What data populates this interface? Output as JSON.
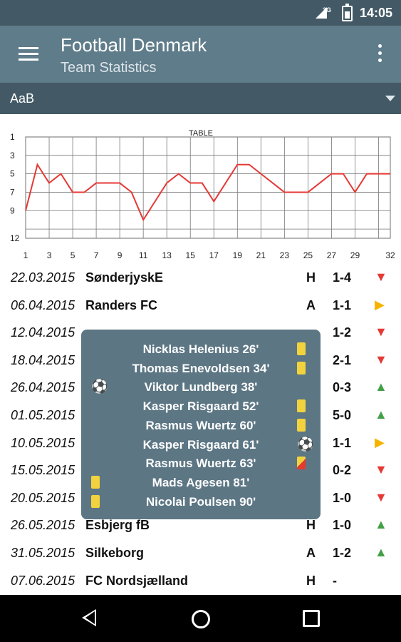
{
  "status_bar": {
    "time": "14:05",
    "network": "3G"
  },
  "app_bar": {
    "title": "Football Denmark",
    "subtitle": "Team Statistics"
  },
  "team_selector": {
    "value": "AaB"
  },
  "chart_data": {
    "type": "line",
    "title": "TABLE",
    "x_ticks": [
      1,
      3,
      5,
      7,
      9,
      11,
      13,
      15,
      17,
      19,
      21,
      23,
      25,
      27,
      29,
      32
    ],
    "y_ticks": [
      1,
      3,
      5,
      7,
      9,
      12
    ],
    "y_inverted": true,
    "xlim": [
      1,
      32
    ],
    "ylim": [
      1,
      12
    ],
    "grid": true,
    "series": [
      {
        "x": [
          1,
          2,
          3,
          4,
          5,
          6,
          7,
          8,
          9,
          10,
          11,
          12,
          13,
          14,
          15,
          16,
          17,
          18,
          19,
          20,
          21,
          22,
          23,
          24,
          25,
          26,
          27,
          28,
          29,
          30,
          31,
          32
        ],
        "y": [
          9,
          4,
          6,
          5,
          7,
          7,
          6,
          6,
          6,
          7,
          10,
          8,
          6,
          5,
          6,
          6,
          8,
          6,
          4,
          4,
          5,
          6,
          7,
          7,
          7,
          6,
          5,
          5,
          7,
          5,
          5,
          5
        ],
        "color": "#e53935"
      }
    ]
  },
  "matches": [
    {
      "date": "22.03.2015",
      "team": "SønderjyskE",
      "venue": "H",
      "score": "1-4",
      "result": "loss"
    },
    {
      "date": "06.04.2015",
      "team": "Randers FC",
      "venue": "A",
      "score": "1-1",
      "result": "draw"
    },
    {
      "date": "12.04.2015",
      "team": "",
      "venue": "",
      "score": "1-2",
      "result": "loss"
    },
    {
      "date": "18.04.2015",
      "team": "",
      "venue": "",
      "score": "2-1",
      "result": "loss"
    },
    {
      "date": "26.04.2015",
      "team": "",
      "venue": "",
      "score": "0-3",
      "result": "win"
    },
    {
      "date": "01.05.2015",
      "team": "",
      "venue": "",
      "score": "5-0",
      "result": "win"
    },
    {
      "date": "10.05.2015",
      "team": "",
      "venue": "",
      "score": "1-1",
      "result": "draw"
    },
    {
      "date": "15.05.2015",
      "team": "",
      "venue": "",
      "score": "0-2",
      "result": "loss"
    },
    {
      "date": "20.05.2015",
      "team": "",
      "venue": "",
      "score": "1-0",
      "result": "loss"
    },
    {
      "date": "26.05.2015",
      "team": "Esbjerg fB",
      "venue": "H",
      "score": "1-0",
      "result": "win"
    },
    {
      "date": "31.05.2015",
      "team": "Silkeborg",
      "venue": "A",
      "score": "1-2",
      "result": "win"
    },
    {
      "date": "07.06.2015",
      "team": "FC Nordsjælland",
      "venue": "H",
      "score": "-",
      "result": ""
    }
  ],
  "popup": {
    "events": [
      {
        "text": "Nicklas Helenius   26'",
        "left": "",
        "right": "yellow-card"
      },
      {
        "text": "Thomas Enevoldsen   34'",
        "left": "",
        "right": "yellow-card"
      },
      {
        "text": "Viktor Lundberg   38'",
        "left": "goal",
        "right": ""
      },
      {
        "text": "Kasper Risgaard   52'",
        "left": "",
        "right": "yellow-card"
      },
      {
        "text": "Rasmus Wuertz   60'",
        "left": "",
        "right": "yellow-card"
      },
      {
        "text": "Kasper Risgaard   61'",
        "left": "",
        "right": "goal"
      },
      {
        "text": "Rasmus Wuertz   63'",
        "left": "",
        "right": "yellow-red-card"
      },
      {
        "text": "Mads Agesen   81'",
        "left": "yellow-card",
        "right": ""
      },
      {
        "text": "Nicolai Poulsen   90'",
        "left": "yellow-card",
        "right": ""
      }
    ]
  },
  "colors": {
    "status_bar": "#435a66",
    "app_bar": "#5f7c8a",
    "popup": "#5c7684",
    "line": "#e53935",
    "win": "#43a047",
    "draw": "#f5b400",
    "loss": "#e53935"
  }
}
